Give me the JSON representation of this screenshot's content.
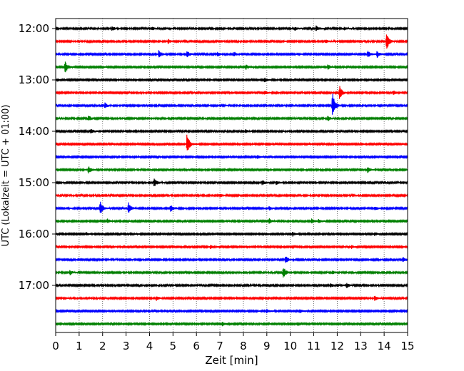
{
  "chart_data": {
    "type": "line",
    "title": "",
    "xlabel": "Zeit  [min]",
    "ylabel": "UTC (Lokalzeit = UTC + 01:00)",
    "xlim": [
      0,
      15
    ],
    "x_ticks": [
      "0",
      "1",
      "2",
      "3",
      "4",
      "5",
      "6",
      "7",
      "8",
      "9",
      "10",
      "11",
      "12",
      "13",
      "14",
      "15"
    ],
    "y_ticks": [
      "12:00",
      "13:00",
      "14:00",
      "15:00",
      "16:00",
      "17:00"
    ],
    "trace_interval_min": 15,
    "grid": "vertical dotted lines at each minute",
    "series_colors": [
      "#000000",
      "#ff0000",
      "#0000ff",
      "#008000"
    ],
    "traces": [
      {
        "start": "12:00",
        "events": [
          {
            "x": 2.4,
            "amp": 0.28
          },
          {
            "x": 4.1,
            "amp": 0.2
          },
          {
            "x": 10.2,
            "amp": 0.22
          },
          {
            "x": 11.1,
            "amp": 0.3
          },
          {
            "x": 12.3,
            "amp": 0.18
          }
        ]
      },
      {
        "start": "12:15",
        "events": [
          {
            "x": 4.8,
            "amp": 0.25
          },
          {
            "x": 11.5,
            "amp": 0.2
          },
          {
            "x": 14.1,
            "amp": 1.2
          }
        ]
      },
      {
        "start": "12:30",
        "events": [
          {
            "x": 4.4,
            "amp": 0.5
          },
          {
            "x": 5.6,
            "amp": 0.35
          },
          {
            "x": 6.9,
            "amp": 0.25
          },
          {
            "x": 7.6,
            "amp": 0.3
          },
          {
            "x": 13.3,
            "amp": 0.45
          },
          {
            "x": 13.7,
            "amp": 0.4
          }
        ]
      },
      {
        "start": "12:45",
        "events": [
          {
            "x": 0.4,
            "amp": 0.8
          },
          {
            "x": 8.1,
            "amp": 0.3
          },
          {
            "x": 11.6,
            "amp": 0.3
          }
        ]
      },
      {
        "start": "13:00",
        "events": [
          {
            "x": 8.9,
            "amp": 0.3
          }
        ]
      },
      {
        "start": "13:15",
        "events": [
          {
            "x": 8.9,
            "amp": 0.3
          },
          {
            "x": 12.1,
            "amp": 0.9
          },
          {
            "x": 14.4,
            "amp": 0.25
          }
        ]
      },
      {
        "start": "13:30",
        "events": [
          {
            "x": 2.1,
            "amp": 0.3
          },
          {
            "x": 11.8,
            "amp": 1.6
          }
        ]
      },
      {
        "start": "13:45",
        "events": [
          {
            "x": 1.4,
            "amp": 0.35
          },
          {
            "x": 11.6,
            "amp": 0.3
          }
        ]
      },
      {
        "start": "14:00",
        "events": [
          {
            "x": 1.5,
            "amp": 0.28
          },
          {
            "x": 8.1,
            "amp": 0.2
          }
        ]
      },
      {
        "start": "14:15",
        "events": [
          {
            "x": 5.6,
            "amp": 1.3
          },
          {
            "x": 13.0,
            "amp": 0.2
          }
        ]
      },
      {
        "start": "14:30",
        "events": [
          {
            "x": 8.6,
            "amp": 0.2
          }
        ]
      },
      {
        "start": "14:45",
        "events": [
          {
            "x": 1.4,
            "amp": 0.5
          },
          {
            "x": 13.3,
            "amp": 0.35
          }
        ]
      },
      {
        "start": "15:00",
        "events": [
          {
            "x": 4.2,
            "amp": 0.55
          },
          {
            "x": 8.8,
            "amp": 0.3
          },
          {
            "x": 9.4,
            "amp": 0.25
          }
        ]
      },
      {
        "start": "15:15",
        "events": [
          {
            "x": 7.0,
            "amp": 0.2
          }
        ]
      },
      {
        "start": "15:30",
        "events": [
          {
            "x": 1.9,
            "amp": 0.85
          },
          {
            "x": 3.1,
            "amp": 0.85
          },
          {
            "x": 4.9,
            "amp": 0.45
          },
          {
            "x": 9.1,
            "amp": 0.25
          },
          {
            "x": 13.6,
            "amp": 0.25
          }
        ]
      },
      {
        "start": "15:45",
        "events": [
          {
            "x": 2.2,
            "amp": 0.25
          },
          {
            "x": 9.1,
            "amp": 0.3
          },
          {
            "x": 10.9,
            "amp": 0.28
          },
          {
            "x": 11.2,
            "amp": 0.25
          }
        ]
      },
      {
        "start": "16:00",
        "events": [
          {
            "x": 1.3,
            "amp": 0.2
          },
          {
            "x": 10.1,
            "amp": 0.25
          },
          {
            "x": 13.6,
            "amp": 0.2
          }
        ]
      },
      {
        "start": "16:15",
        "events": [
          {
            "x": 6.6,
            "amp": 0.2
          },
          {
            "x": 12.6,
            "amp": 0.2
          }
        ]
      },
      {
        "start": "16:30",
        "events": [
          {
            "x": 9.8,
            "amp": 0.5
          },
          {
            "x": 14.8,
            "amp": 0.3
          }
        ]
      },
      {
        "start": "16:45",
        "events": [
          {
            "x": 0.6,
            "amp": 0.3
          },
          {
            "x": 9.7,
            "amp": 0.85
          },
          {
            "x": 11.8,
            "amp": 0.25
          }
        ]
      },
      {
        "start": "17:00",
        "events": [
          {
            "x": 11.7,
            "amp": 0.25
          },
          {
            "x": 12.4,
            "amp": 0.3
          }
        ]
      },
      {
        "start": "17:15",
        "events": [
          {
            "x": 4.3,
            "amp": 0.25
          },
          {
            "x": 13.6,
            "amp": 0.3
          }
        ]
      },
      {
        "start": "17:30",
        "events": [
          {
            "x": 9.0,
            "amp": 0.25
          },
          {
            "x": 10.4,
            "amp": 0.2
          }
        ]
      },
      {
        "start": "17:45",
        "events": [
          {
            "x": 7.1,
            "amp": 0.22
          }
        ]
      }
    ]
  }
}
